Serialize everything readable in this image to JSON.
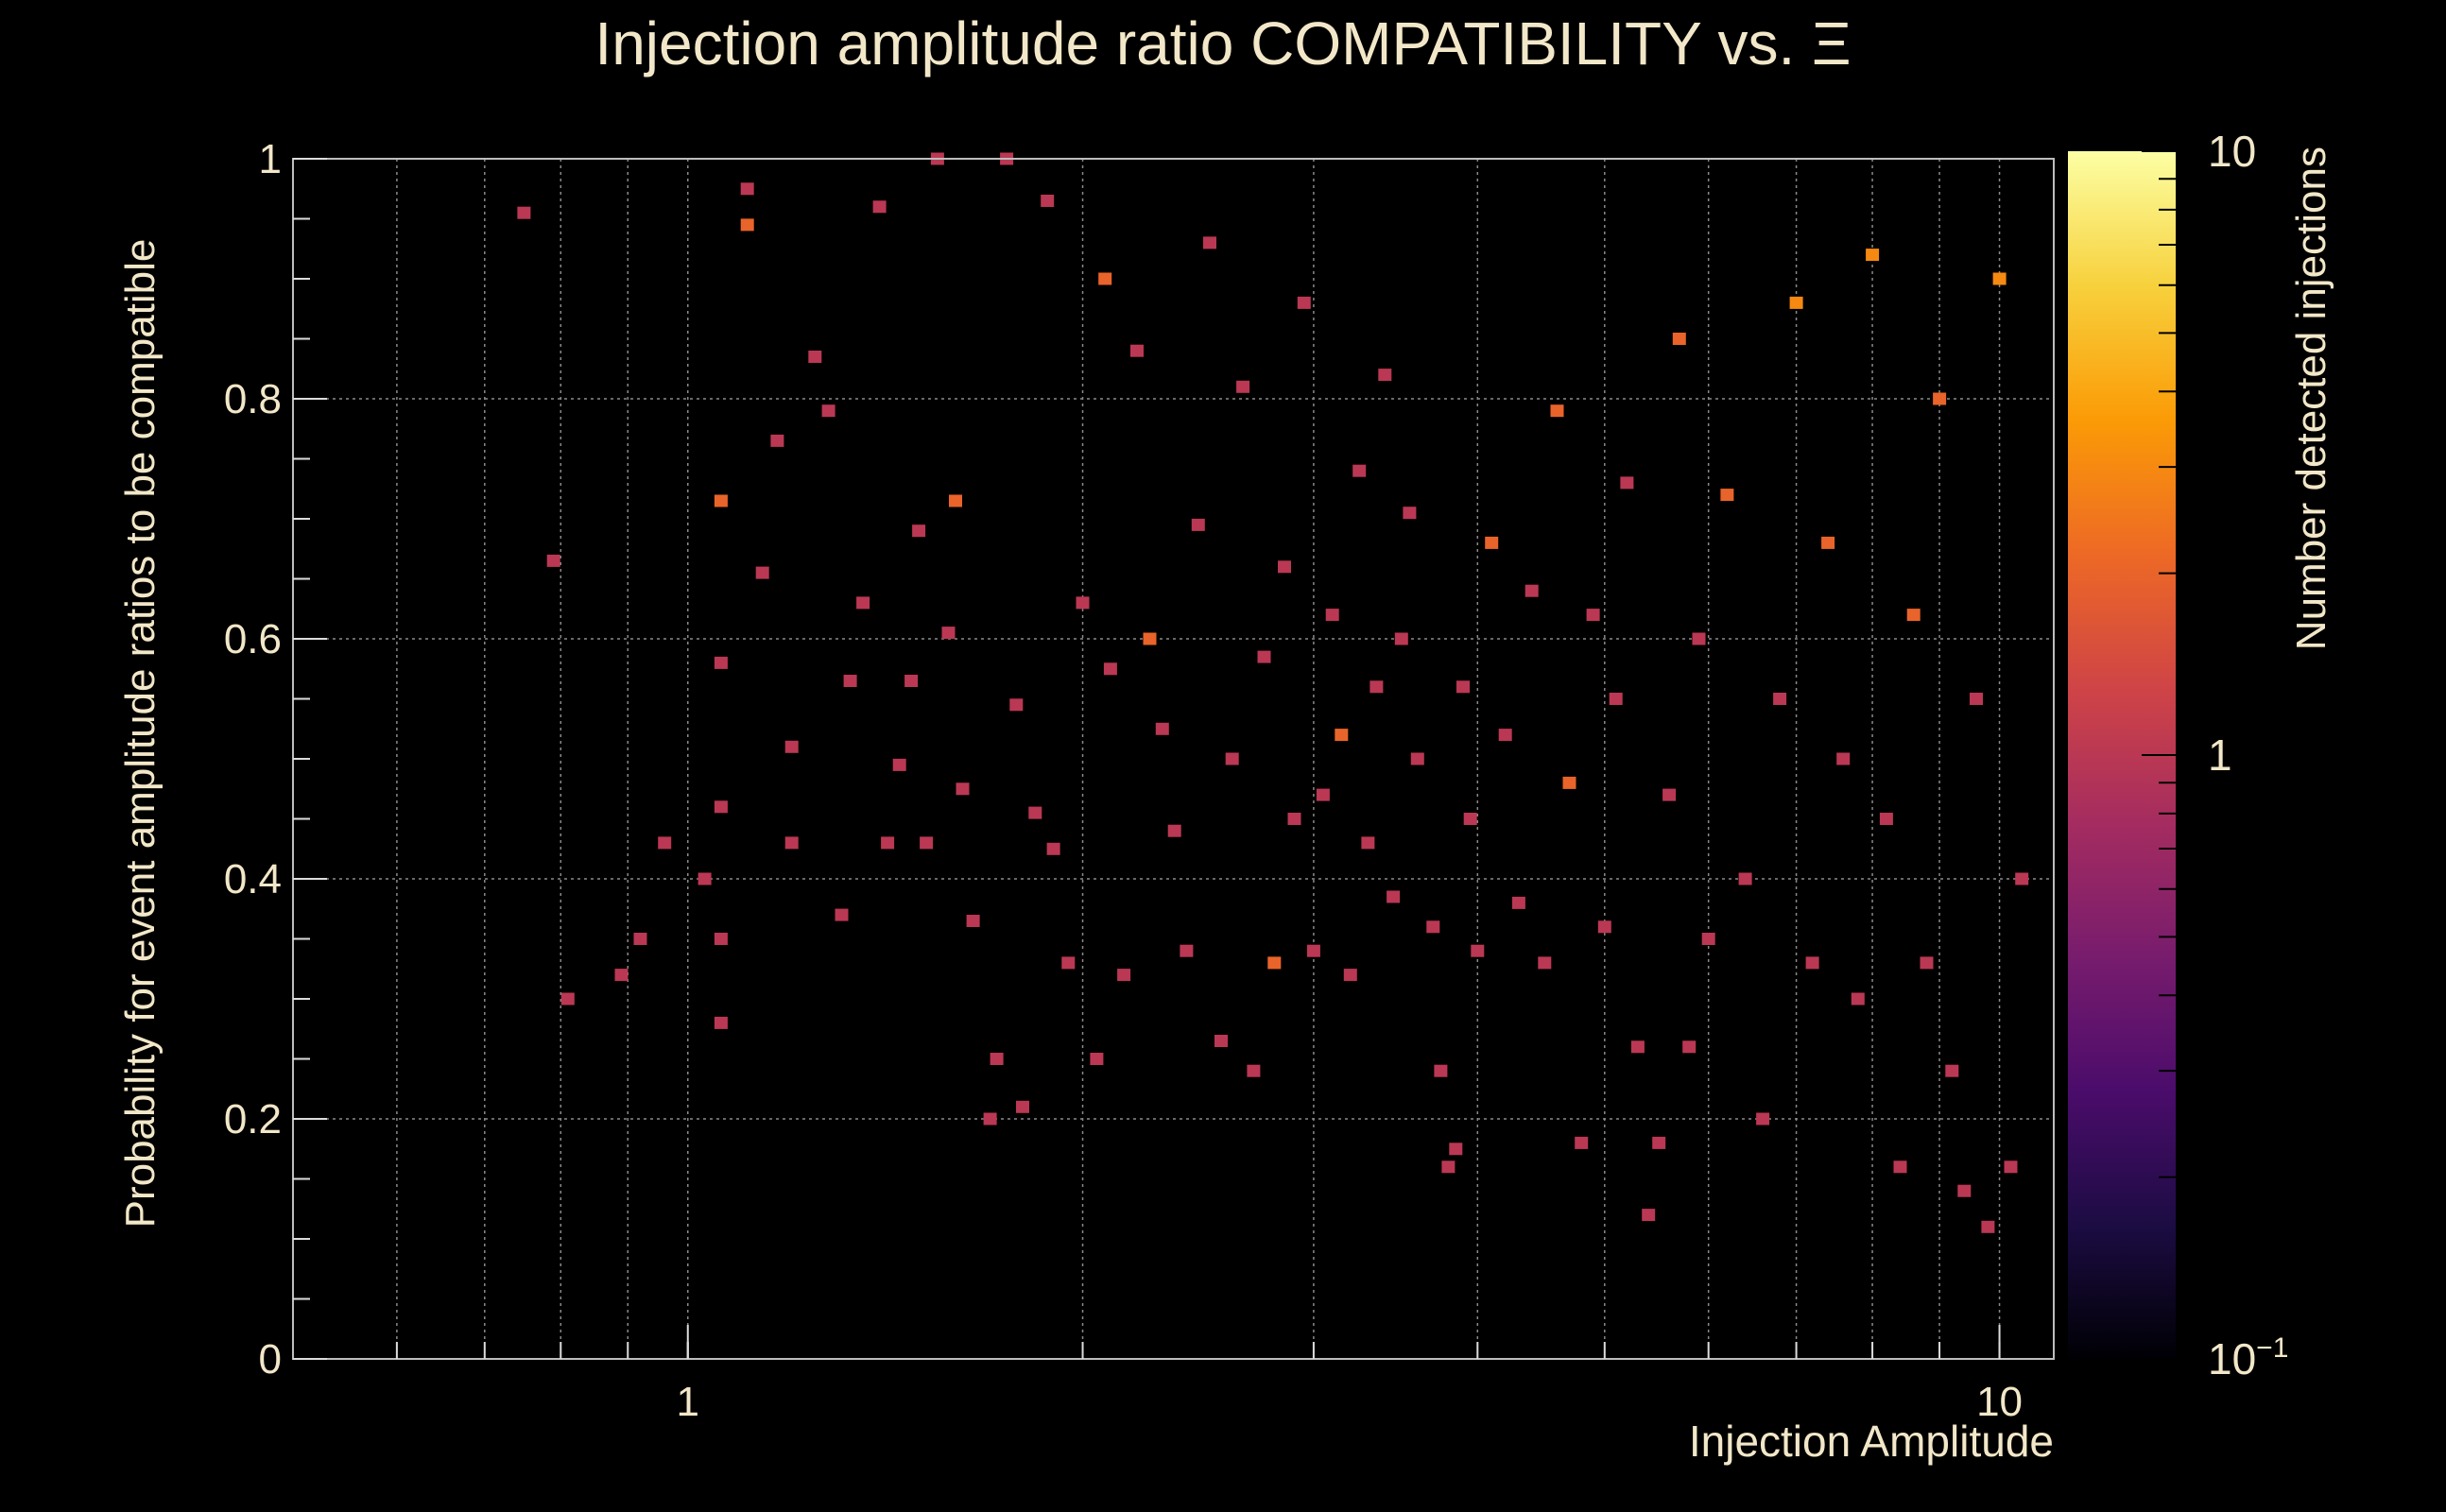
{
  "chart_data": {
    "type": "heatmap",
    "title": "Injection amplitude ratio COMPATIBILITY vs.  Ξ",
    "xlabel": "Injection Amplitude",
    "ylabel": "Probability for event amplitude ratios to be compatible",
    "zlabel": "Number detected injections",
    "x_scale": "log",
    "z_scale": "log",
    "xlim": [
      0.5,
      11
    ],
    "ylim": [
      0,
      1
    ],
    "zlim": [
      0.1,
      10
    ],
    "grid": true,
    "x_ticks": [
      {
        "value": 1,
        "label": "1"
      },
      {
        "value": 10,
        "label": "10"
      }
    ],
    "y_ticks": [
      {
        "value": 0,
        "label": "0"
      },
      {
        "value": 0.2,
        "label": "0.2"
      },
      {
        "value": 0.4,
        "label": "0.4"
      },
      {
        "value": 0.6,
        "label": "0.6"
      },
      {
        "value": 0.8,
        "label": "0.8"
      },
      {
        "value": 1,
        "label": "1"
      }
    ],
    "z_ticks": [
      {
        "value": 0.1,
        "label_base": "10",
        "label_exp": "−1"
      },
      {
        "value": 1,
        "label_base": "1",
        "label_exp": ""
      },
      {
        "value": 10,
        "label_base": "10",
        "label_exp": ""
      }
    ],
    "colorscale": [
      "#000004",
      "#1c0c43",
      "#4b0c6b",
      "#781c6d",
      "#a52c60",
      "#cf4446",
      "#ed6925",
      "#fb9b06",
      "#f7d13d",
      "#fcffa4"
    ],
    "cells": [
      [
        0.75,
        0.955,
        1
      ],
      [
        0.79,
        0.665,
        1
      ],
      [
        0.81,
        0.3,
        1
      ],
      [
        0.89,
        0.32,
        1
      ],
      [
        0.92,
        0.35,
        1
      ],
      [
        0.96,
        0.43,
        1
      ],
      [
        1.03,
        0.4,
        1
      ],
      [
        1.06,
        0.58,
        1
      ],
      [
        1.06,
        0.46,
        1
      ],
      [
        1.06,
        0.35,
        1
      ],
      [
        1.06,
        0.28,
        1
      ],
      [
        1.06,
        0.715,
        2
      ],
      [
        1.11,
        0.975,
        1
      ],
      [
        1.11,
        0.945,
        2
      ],
      [
        1.14,
        0.655,
        1
      ],
      [
        1.17,
        0.765,
        1
      ],
      [
        1.2,
        0.51,
        1
      ],
      [
        1.2,
        0.43,
        1
      ],
      [
        1.25,
        0.835,
        1
      ],
      [
        1.28,
        0.79,
        1
      ],
      [
        1.31,
        0.37,
        1
      ],
      [
        1.33,
        0.565,
        1
      ],
      [
        1.36,
        0.63,
        1
      ],
      [
        1.4,
        0.96,
        1
      ],
      [
        1.42,
        0.43,
        1
      ],
      [
        1.45,
        0.495,
        1
      ],
      [
        1.48,
        0.565,
        1
      ],
      [
        1.5,
        0.69,
        1
      ],
      [
        1.52,
        0.43,
        1
      ],
      [
        1.55,
        1.0,
        1
      ],
      [
        1.58,
        0.605,
        1
      ],
      [
        1.6,
        0.715,
        2
      ],
      [
        1.62,
        0.475,
        1
      ],
      [
        1.65,
        0.365,
        1
      ],
      [
        1.7,
        0.2,
        1
      ],
      [
        1.72,
        0.25,
        1
      ],
      [
        1.75,
        1.0,
        1
      ],
      [
        1.78,
        0.545,
        1
      ],
      [
        1.8,
        0.21,
        1
      ],
      [
        1.84,
        0.455,
        1
      ],
      [
        1.88,
        0.965,
        1
      ],
      [
        1.9,
        0.425,
        1
      ],
      [
        1.95,
        0.33,
        1
      ],
      [
        2.0,
        0.63,
        1
      ],
      [
        2.05,
        0.25,
        1
      ],
      [
        2.08,
        0.9,
        2
      ],
      [
        2.1,
        0.575,
        1
      ],
      [
        2.15,
        0.32,
        1
      ],
      [
        2.2,
        0.84,
        1
      ],
      [
        2.25,
        0.6,
        2
      ],
      [
        2.3,
        0.525,
        1
      ],
      [
        2.35,
        0.44,
        1
      ],
      [
        2.4,
        0.34,
        1
      ],
      [
        2.45,
        0.695,
        1
      ],
      [
        2.5,
        0.93,
        1
      ],
      [
        2.55,
        0.265,
        1
      ],
      [
        2.6,
        0.5,
        1
      ],
      [
        2.65,
        0.81,
        1
      ],
      [
        2.7,
        0.24,
        1
      ],
      [
        2.75,
        0.585,
        1
      ],
      [
        2.8,
        0.33,
        2
      ],
      [
        2.85,
        0.66,
        1
      ],
      [
        2.9,
        0.45,
        1
      ],
      [
        2.95,
        0.88,
        1
      ],
      [
        3.0,
        0.34,
        1
      ],
      [
        3.05,
        0.47,
        1
      ],
      [
        3.1,
        0.62,
        1
      ],
      [
        3.15,
        0.52,
        2
      ],
      [
        3.2,
        0.32,
        1
      ],
      [
        3.25,
        0.74,
        1
      ],
      [
        3.3,
        0.43,
        1
      ],
      [
        3.35,
        0.56,
        1
      ],
      [
        3.4,
        0.82,
        1
      ],
      [
        3.45,
        0.385,
        1
      ],
      [
        3.5,
        0.6,
        1
      ],
      [
        3.55,
        0.705,
        1
      ],
      [
        3.6,
        0.5,
        1
      ],
      [
        3.7,
        0.36,
        1
      ],
      [
        3.75,
        0.24,
        1
      ],
      [
        3.8,
        0.16,
        1
      ],
      [
        3.85,
        0.175,
        1
      ],
      [
        3.9,
        0.56,
        1
      ],
      [
        3.95,
        0.45,
        1
      ],
      [
        4.0,
        0.34,
        1
      ],
      [
        4.1,
        0.68,
        2
      ],
      [
        4.2,
        0.52,
        1
      ],
      [
        4.3,
        0.38,
        1
      ],
      [
        4.4,
        0.64,
        1
      ],
      [
        4.5,
        0.33,
        1
      ],
      [
        4.6,
        0.79,
        2
      ],
      [
        4.7,
        0.48,
        2
      ],
      [
        4.8,
        0.18,
        1
      ],
      [
        4.9,
        0.62,
        1
      ],
      [
        5.0,
        0.36,
        1
      ],
      [
        5.1,
        0.55,
        1
      ],
      [
        5.2,
        0.73,
        1
      ],
      [
        5.3,
        0.26,
        1
      ],
      [
        5.4,
        0.12,
        1
      ],
      [
        5.5,
        0.18,
        1
      ],
      [
        5.6,
        0.47,
        1
      ],
      [
        5.7,
        0.85,
        2
      ],
      [
        5.8,
        0.26,
        1
      ],
      [
        5.9,
        0.6,
        1
      ],
      [
        6.0,
        0.35,
        1
      ],
      [
        6.2,
        0.72,
        2
      ],
      [
        6.4,
        0.4,
        1
      ],
      [
        6.6,
        0.2,
        1
      ],
      [
        6.8,
        0.55,
        1
      ],
      [
        7.0,
        0.88,
        3
      ],
      [
        7.2,
        0.33,
        1
      ],
      [
        7.4,
        0.68,
        2
      ],
      [
        7.6,
        0.5,
        1
      ],
      [
        7.8,
        0.3,
        1
      ],
      [
        8.0,
        0.92,
        3
      ],
      [
        8.2,
        0.45,
        1
      ],
      [
        8.4,
        0.16,
        1
      ],
      [
        8.6,
        0.62,
        2
      ],
      [
        8.8,
        0.33,
        1
      ],
      [
        9.0,
        0.8,
        2
      ],
      [
        9.2,
        0.24,
        1
      ],
      [
        9.4,
        0.14,
        1
      ],
      [
        9.6,
        0.55,
        1
      ],
      [
        9.8,
        0.11,
        1
      ],
      [
        10.0,
        0.9,
        3
      ],
      [
        10.2,
        0.16,
        1
      ],
      [
        10.4,
        0.4,
        1
      ]
    ]
  }
}
